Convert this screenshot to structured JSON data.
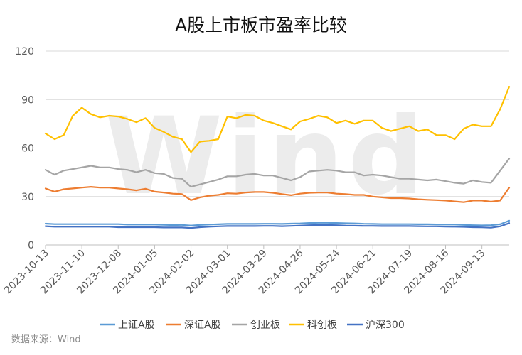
{
  "chart_data": {
    "type": "line",
    "title": "A股上市板市盈率比较",
    "source": "数据来源：Wind",
    "watermark": "Wind",
    "xlabel": "",
    "ylabel": "",
    "ylim": [
      0,
      120
    ],
    "yticks": [
      0,
      30,
      60,
      90,
      120
    ],
    "grid": true,
    "legend_position": "bottom",
    "x_tick_labels": [
      "2023-10-13",
      "2023-11-10",
      "2023-12-08",
      "2024-01-05",
      "2024-02-02",
      "2024-03-01",
      "2024-03-29",
      "2024-04-26",
      "2024-05-24",
      "2024-06-21",
      "2024-07-19",
      "2024-08-16",
      "2024-09-13"
    ],
    "x": [
      "2023-10-13",
      "2023-10-20",
      "2023-10-27",
      "2023-11-03",
      "2023-11-10",
      "2023-11-17",
      "2023-11-24",
      "2023-12-01",
      "2023-12-08",
      "2023-12-15",
      "2023-12-22",
      "2023-12-29",
      "2024-01-05",
      "2024-01-12",
      "2024-01-19",
      "2024-01-26",
      "2024-02-02",
      "2024-02-09",
      "2024-02-16",
      "2024-02-23",
      "2024-03-01",
      "2024-03-08",
      "2024-03-15",
      "2024-03-22",
      "2024-03-29",
      "2024-04-05",
      "2024-04-12",
      "2024-04-19",
      "2024-04-26",
      "2024-05-03",
      "2024-05-10",
      "2024-05-17",
      "2024-05-24",
      "2024-05-31",
      "2024-06-07",
      "2024-06-14",
      "2024-06-21",
      "2024-06-28",
      "2024-07-05",
      "2024-07-12",
      "2024-07-19",
      "2024-07-26",
      "2024-08-02",
      "2024-08-09",
      "2024-08-16",
      "2024-08-23",
      "2024-08-30",
      "2024-09-06",
      "2024-09-13",
      "2024-09-20",
      "2024-09-27",
      "2024-10-04"
    ],
    "series": [
      {
        "name": "上证A股",
        "color": "#5B9BD5",
        "values": [
          13.2,
          12.9,
          12.9,
          12.9,
          12.9,
          12.9,
          12.9,
          12.9,
          12.9,
          12.6,
          12.6,
          12.6,
          12.6,
          12.5,
          12.3,
          12.4,
          12.0,
          12.4,
          12.6,
          12.8,
          13.0,
          13.0,
          13.0,
          13.0,
          13.1,
          13.1,
          13.0,
          13.2,
          13.3,
          13.6,
          13.7,
          13.7,
          13.6,
          13.4,
          13.3,
          13.1,
          13.0,
          12.9,
          12.9,
          12.9,
          12.9,
          12.8,
          12.8,
          12.7,
          12.6,
          12.6,
          12.4,
          12.2,
          12.1,
          12.2,
          12.8,
          15.0
        ]
      },
      {
        "name": "深证A股",
        "color": "#ED7D31",
        "values": [
          35.0,
          33.0,
          34.5,
          35.0,
          35.5,
          36.0,
          35.5,
          35.5,
          35.0,
          34.5,
          33.8,
          34.8,
          33.0,
          32.5,
          31.8,
          31.5,
          27.8,
          29.5,
          30.5,
          31.0,
          32.0,
          31.8,
          32.5,
          32.8,
          32.8,
          32.3,
          31.5,
          30.8,
          31.8,
          32.3,
          32.5,
          32.5,
          31.8,
          31.5,
          31.0,
          31.0,
          30.0,
          29.5,
          29.0,
          29.0,
          28.8,
          28.3,
          28.0,
          27.8,
          27.5,
          27.0,
          26.5,
          27.5,
          27.5,
          26.8,
          27.5,
          35.5
        ]
      },
      {
        "name": "创业板",
        "color": "#A5A5A5",
        "values": [
          46.5,
          43.5,
          46.0,
          47.0,
          48.0,
          49.0,
          48.0,
          48.0,
          47.0,
          46.5,
          45.0,
          46.5,
          44.5,
          44.0,
          41.5,
          41.0,
          36.0,
          37.5,
          39.0,
          40.5,
          42.5,
          42.5,
          43.5,
          44.0,
          43.0,
          43.0,
          41.5,
          40.0,
          42.0,
          45.5,
          46.0,
          46.5,
          46.0,
          45.0,
          45.0,
          43.0,
          43.5,
          43.0,
          42.0,
          41.0,
          41.0,
          40.5,
          40.0,
          40.5,
          39.5,
          38.5,
          38.0,
          40.0,
          39.0,
          38.5,
          46.0,
          53.5
        ]
      },
      {
        "name": "科创板",
        "color": "#FFC000",
        "values": [
          69.0,
          65.5,
          68.0,
          80.0,
          85.0,
          81.0,
          79.0,
          80.0,
          79.5,
          78.0,
          76.0,
          78.5,
          72.5,
          70.0,
          67.0,
          65.5,
          57.5,
          64.0,
          64.5,
          65.5,
          79.5,
          78.5,
          80.5,
          80.0,
          77.0,
          75.5,
          73.5,
          71.5,
          76.5,
          78.0,
          80.0,
          79.0,
          75.5,
          77.0,
          75.0,
          77.0,
          77.0,
          72.5,
          70.5,
          72.0,
          73.5,
          70.5,
          71.5,
          68.0,
          68.0,
          65.5,
          72.0,
          74.5,
          73.5,
          73.5,
          84.0,
          98.0
        ]
      },
      {
        "name": "沪深300",
        "color": "#4472C4",
        "values": [
          11.6,
          11.3,
          11.3,
          11.3,
          11.3,
          11.3,
          11.3,
          11.3,
          11.0,
          11.0,
          11.0,
          11.0,
          11.0,
          10.8,
          10.8,
          10.8,
          10.5,
          11.0,
          11.3,
          11.5,
          11.7,
          11.7,
          11.7,
          11.7,
          11.8,
          11.8,
          11.6,
          11.8,
          12.0,
          12.2,
          12.3,
          12.3,
          12.2,
          12.0,
          11.9,
          11.8,
          11.8,
          11.7,
          11.7,
          11.7,
          11.7,
          11.6,
          11.5,
          11.5,
          11.4,
          11.3,
          11.2,
          11.0,
          10.9,
          10.7,
          11.5,
          13.5
        ]
      }
    ]
  }
}
